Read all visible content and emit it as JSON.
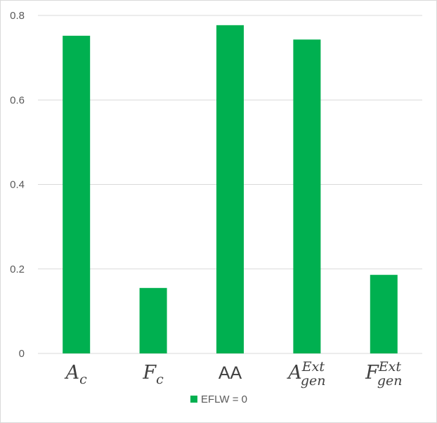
{
  "chart_data": {
    "type": "bar",
    "categories": [
      {
        "base": "A",
        "sub": "c",
        "sup": "",
        "italic": true
      },
      {
        "base": "F",
        "sub": "c",
        "sup": "",
        "italic": true
      },
      {
        "base": "AA",
        "sub": "",
        "sup": "",
        "italic": false
      },
      {
        "base": "A",
        "sub": "gen",
        "sup": "Ext",
        "italic": true
      },
      {
        "base": "F",
        "sub": "gen",
        "sup": "Ext",
        "italic": true
      }
    ],
    "series": [
      {
        "name": "EFLW = 0",
        "color": "#00b050",
        "values": [
          0.752,
          0.155,
          0.777,
          0.743,
          0.186
        ]
      }
    ],
    "ylim": [
      0,
      0.8
    ],
    "yticks": [
      "0",
      "0.2",
      "0.4",
      "0.6",
      "0.8"
    ],
    "grid": true,
    "legend_position": "bottom",
    "title": "",
    "xlabel": "",
    "ylabel": ""
  }
}
